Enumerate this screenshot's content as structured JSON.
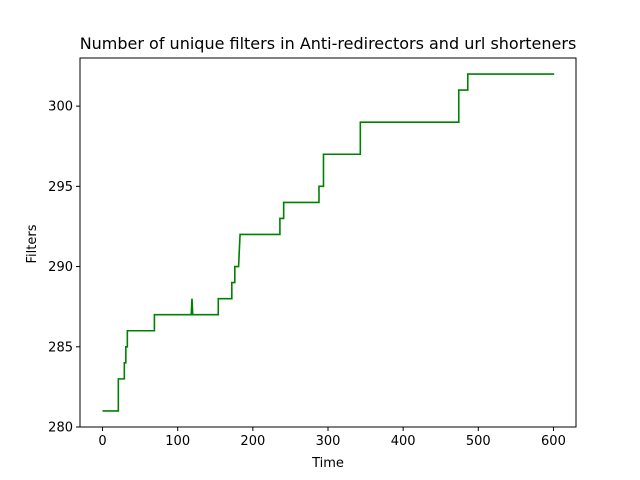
{
  "chart_data": {
    "type": "line",
    "title": "Number of unique filters in Anti-redirectors and url shorteners",
    "xlabel": "Time",
    "ylabel": "Filters",
    "xlim": [
      -30,
      630
    ],
    "ylim": [
      280,
      303
    ],
    "xticks": [
      0,
      100,
      200,
      300,
      400,
      500,
      600
    ],
    "yticks": [
      280,
      285,
      290,
      295,
      300
    ],
    "grid": false,
    "legend": "none",
    "series": [
      {
        "color": "#008000",
        "step": true,
        "points": [
          [
            0,
            281
          ],
          [
            21,
            281
          ],
          [
            21,
            283
          ],
          [
            29,
            283
          ],
          [
            29,
            284
          ],
          [
            31,
            284
          ],
          [
            31,
            285
          ],
          [
            33,
            285
          ],
          [
            33,
            286
          ],
          [
            69,
            286
          ],
          [
            69,
            287
          ],
          [
            118,
            287
          ],
          [
            119,
            288
          ],
          [
            120,
            287
          ],
          [
            154,
            287
          ],
          [
            154,
            288
          ],
          [
            172,
            288
          ],
          [
            172,
            289
          ],
          [
            176,
            289
          ],
          [
            176,
            290
          ],
          [
            181,
            290
          ],
          [
            183,
            292
          ],
          [
            236,
            292
          ],
          [
            236,
            293
          ],
          [
            241,
            293
          ],
          [
            241,
            294
          ],
          [
            288,
            294
          ],
          [
            288,
            295
          ],
          [
            294,
            295
          ],
          [
            294,
            297
          ],
          [
            343,
            297
          ],
          [
            343,
            299
          ],
          [
            474,
            299
          ],
          [
            474,
            301
          ],
          [
            486,
            301
          ],
          [
            486,
            302
          ],
          [
            601,
            302
          ]
        ]
      }
    ]
  }
}
